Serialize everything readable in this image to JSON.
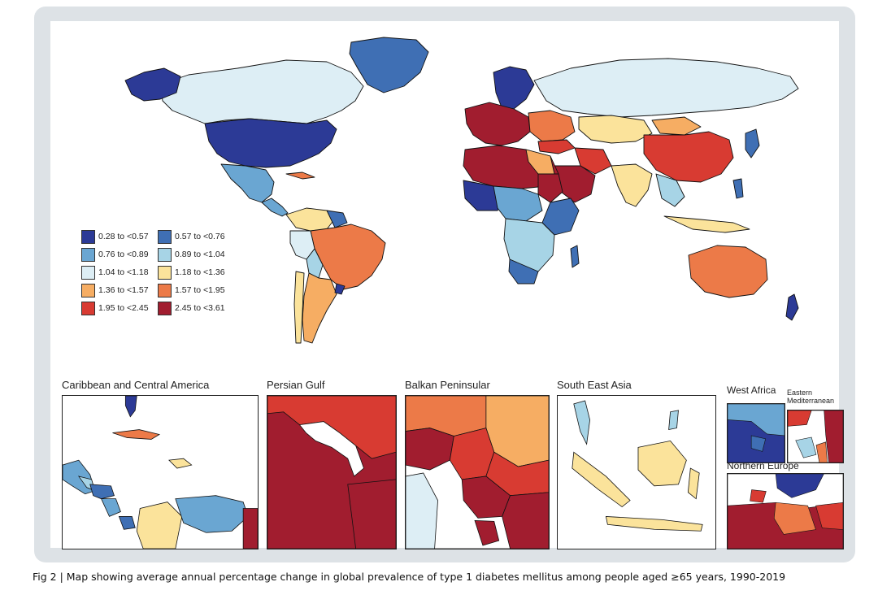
{
  "legend": {
    "items": [
      {
        "label": "0.28 to <0.57",
        "color": "#2c3a96"
      },
      {
        "label": "0.57 to <0.76",
        "color": "#3f6fb4"
      },
      {
        "label": "0.76 to <0.89",
        "color": "#6aa6d2"
      },
      {
        "label": "0.89 to <1.04",
        "color": "#a7d4e6"
      },
      {
        "label": "1.04 to <1.18",
        "color": "#ddeef5"
      },
      {
        "label": "1.18 to <1.36",
        "color": "#fbe39b"
      },
      {
        "label": "1.36 to <1.57",
        "color": "#f6ad63"
      },
      {
        "label": "1.57 to <1.95",
        "color": "#ec7a48"
      },
      {
        "label": "1.95 to <2.45",
        "color": "#d83b32"
      },
      {
        "label": "2.45 to <3.61",
        "color": "#a11d2f"
      }
    ]
  },
  "insets": {
    "caribbean": "Caribbean and Central America",
    "persian_gulf": "Persian Gulf",
    "balkan": "Balkan Peninsular",
    "south_east_asia": "South East Asia",
    "west_africa": "West Africa",
    "eastern_med": "Eastern Mediterranean",
    "northern_europe": "Northern Europe"
  },
  "caption": "Fig 2 | Map showing average annual percentage change in global prevalence of type 1 diabetes mellitus among people aged ≥65 years, 1990-2019"
}
